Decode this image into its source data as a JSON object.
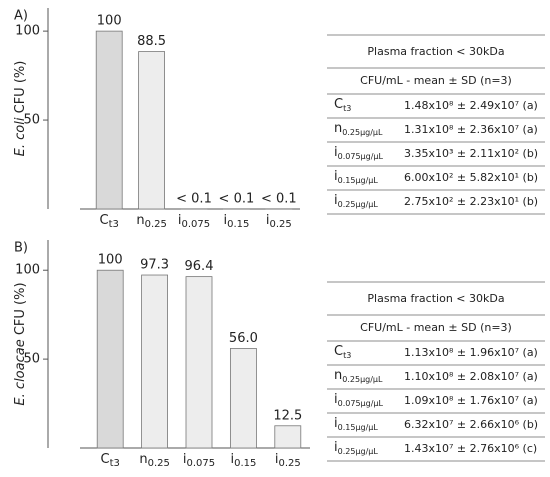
{
  "chart_data": [
    {
      "type": "bar",
      "panel": "A)",
      "ylabel": [
        "E. coli",
        "CFU (%)"
      ],
      "categories": [
        {
          "main": "C",
          "sub": "t3"
        },
        {
          "main": "n",
          "sub": "0.25"
        },
        {
          "main": "i",
          "sub": "0.075"
        },
        {
          "main": "i",
          "sub": "0.15"
        },
        {
          "main": "i",
          "sub": "0.25"
        }
      ],
      "values": [
        100,
        88.5,
        0.1,
        0.1,
        0.1
      ],
      "value_labels": [
        "100",
        "88.5",
        "< 0.1",
        "< 0.1",
        "< 0.1"
      ],
      "colors": [
        "#d9d9d9",
        "#ededed",
        "#ededed",
        "#ededed",
        "#ededed"
      ],
      "ylim": [
        0,
        113
      ],
      "yticks": [
        50,
        100
      ]
    },
    {
      "type": "bar",
      "panel": "B)",
      "ylabel": [
        "E. cloacae",
        "CFU (%)"
      ],
      "categories": [
        {
          "main": "C",
          "sub": "t3"
        },
        {
          "main": "n",
          "sub": "0.25"
        },
        {
          "main": "i",
          "sub": "0.075"
        },
        {
          "main": "i",
          "sub": "0.15"
        },
        {
          "main": "i",
          "sub": "0.25"
        }
      ],
      "values": [
        100,
        97.3,
        96.4,
        56.0,
        12.5
      ],
      "value_labels": [
        "100",
        "97.3",
        "96.4",
        "56.0",
        "12.5"
      ],
      "colors": [
        "#d9d9d9",
        "#ededed",
        "#ededed",
        "#ededed",
        "#ededed"
      ],
      "ylim": [
        0,
        117
      ],
      "yticks": [
        50,
        100
      ]
    }
  ],
  "tables": [
    {
      "title": "Plasma fraction < 30kDa",
      "header": "CFU/mL - mean ± SD (n=3)",
      "rows": [
        {
          "main": "C",
          "sub": "t3",
          "value": "1.48x10⁸ ± 2.49x10⁷ (a)"
        },
        {
          "main": "n",
          "sub": "0.25µg/µL",
          "value": "1.31x10⁸ ± 2.36x10⁷ (a)"
        },
        {
          "main": "i",
          "sub": "0.075µg/µL",
          "value": "3.35x10³ ± 2.11x10² (b)"
        },
        {
          "main": "i",
          "sub": "0.15µg/µL",
          "value": "6.00x10² ± 5.82x10¹ (b)"
        },
        {
          "main": "i",
          "sub": "0.25µg/µL",
          "value": "2.75x10² ± 2.23x10¹ (b)"
        }
      ]
    },
    {
      "title": "Plasma fraction < 30kDa",
      "header": "CFU/mL - mean ± SD (n=3)",
      "rows": [
        {
          "main": "C",
          "sub": "t3",
          "value": "1.13x10⁸ ± 1.96x10⁷ (a)"
        },
        {
          "main": "n",
          "sub": "0.25µg/µL",
          "value": "1.10x10⁸ ± 2.08x10⁷ (a)"
        },
        {
          "main": "i",
          "sub": "0.075µg/µL",
          "value": "1.09x10⁸ ± 1.76x10⁷ (a)"
        },
        {
          "main": "i",
          "sub": "0.15µg/µL",
          "value": "6.32x10⁷ ± 2.66x10⁶ (b)"
        },
        {
          "main": "i",
          "sub": "0.25µg/µL",
          "value": "1.43x10⁷ ± 2.76x10⁶ (c)"
        }
      ]
    }
  ]
}
